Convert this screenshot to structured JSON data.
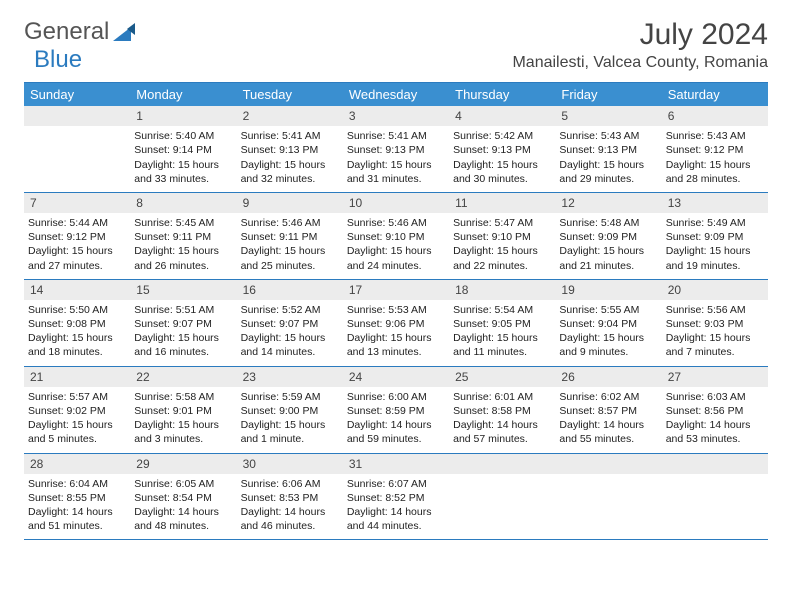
{
  "logo": {
    "part1": "General",
    "part2": "Blue"
  },
  "title": "July 2024",
  "location": "Manailesti, Valcea County, Romania",
  "day_headers": [
    "Sunday",
    "Monday",
    "Tuesday",
    "Wednesday",
    "Thursday",
    "Friday",
    "Saturday"
  ],
  "colors": {
    "header_bg": "#3a8fd0",
    "border": "#2b7bbf",
    "num_bg": "#ececec",
    "text": "#222"
  },
  "weeks": [
    [
      {
        "num": "",
        "sunrise": "",
        "sunset": "",
        "daylight": ""
      },
      {
        "num": "1",
        "sunrise": "Sunrise: 5:40 AM",
        "sunset": "Sunset: 9:14 PM",
        "daylight": "Daylight: 15 hours and 33 minutes."
      },
      {
        "num": "2",
        "sunrise": "Sunrise: 5:41 AM",
        "sunset": "Sunset: 9:13 PM",
        "daylight": "Daylight: 15 hours and 32 minutes."
      },
      {
        "num": "3",
        "sunrise": "Sunrise: 5:41 AM",
        "sunset": "Sunset: 9:13 PM",
        "daylight": "Daylight: 15 hours and 31 minutes."
      },
      {
        "num": "4",
        "sunrise": "Sunrise: 5:42 AM",
        "sunset": "Sunset: 9:13 PM",
        "daylight": "Daylight: 15 hours and 30 minutes."
      },
      {
        "num": "5",
        "sunrise": "Sunrise: 5:43 AM",
        "sunset": "Sunset: 9:13 PM",
        "daylight": "Daylight: 15 hours and 29 minutes."
      },
      {
        "num": "6",
        "sunrise": "Sunrise: 5:43 AM",
        "sunset": "Sunset: 9:12 PM",
        "daylight": "Daylight: 15 hours and 28 minutes."
      }
    ],
    [
      {
        "num": "7",
        "sunrise": "Sunrise: 5:44 AM",
        "sunset": "Sunset: 9:12 PM",
        "daylight": "Daylight: 15 hours and 27 minutes."
      },
      {
        "num": "8",
        "sunrise": "Sunrise: 5:45 AM",
        "sunset": "Sunset: 9:11 PM",
        "daylight": "Daylight: 15 hours and 26 minutes."
      },
      {
        "num": "9",
        "sunrise": "Sunrise: 5:46 AM",
        "sunset": "Sunset: 9:11 PM",
        "daylight": "Daylight: 15 hours and 25 minutes."
      },
      {
        "num": "10",
        "sunrise": "Sunrise: 5:46 AM",
        "sunset": "Sunset: 9:10 PM",
        "daylight": "Daylight: 15 hours and 24 minutes."
      },
      {
        "num": "11",
        "sunrise": "Sunrise: 5:47 AM",
        "sunset": "Sunset: 9:10 PM",
        "daylight": "Daylight: 15 hours and 22 minutes."
      },
      {
        "num": "12",
        "sunrise": "Sunrise: 5:48 AM",
        "sunset": "Sunset: 9:09 PM",
        "daylight": "Daylight: 15 hours and 21 minutes."
      },
      {
        "num": "13",
        "sunrise": "Sunrise: 5:49 AM",
        "sunset": "Sunset: 9:09 PM",
        "daylight": "Daylight: 15 hours and 19 minutes."
      }
    ],
    [
      {
        "num": "14",
        "sunrise": "Sunrise: 5:50 AM",
        "sunset": "Sunset: 9:08 PM",
        "daylight": "Daylight: 15 hours and 18 minutes."
      },
      {
        "num": "15",
        "sunrise": "Sunrise: 5:51 AM",
        "sunset": "Sunset: 9:07 PM",
        "daylight": "Daylight: 15 hours and 16 minutes."
      },
      {
        "num": "16",
        "sunrise": "Sunrise: 5:52 AM",
        "sunset": "Sunset: 9:07 PM",
        "daylight": "Daylight: 15 hours and 14 minutes."
      },
      {
        "num": "17",
        "sunrise": "Sunrise: 5:53 AM",
        "sunset": "Sunset: 9:06 PM",
        "daylight": "Daylight: 15 hours and 13 minutes."
      },
      {
        "num": "18",
        "sunrise": "Sunrise: 5:54 AM",
        "sunset": "Sunset: 9:05 PM",
        "daylight": "Daylight: 15 hours and 11 minutes."
      },
      {
        "num": "19",
        "sunrise": "Sunrise: 5:55 AM",
        "sunset": "Sunset: 9:04 PM",
        "daylight": "Daylight: 15 hours and 9 minutes."
      },
      {
        "num": "20",
        "sunrise": "Sunrise: 5:56 AM",
        "sunset": "Sunset: 9:03 PM",
        "daylight": "Daylight: 15 hours and 7 minutes."
      }
    ],
    [
      {
        "num": "21",
        "sunrise": "Sunrise: 5:57 AM",
        "sunset": "Sunset: 9:02 PM",
        "daylight": "Daylight: 15 hours and 5 minutes."
      },
      {
        "num": "22",
        "sunrise": "Sunrise: 5:58 AM",
        "sunset": "Sunset: 9:01 PM",
        "daylight": "Daylight: 15 hours and 3 minutes."
      },
      {
        "num": "23",
        "sunrise": "Sunrise: 5:59 AM",
        "sunset": "Sunset: 9:00 PM",
        "daylight": "Daylight: 15 hours and 1 minute."
      },
      {
        "num": "24",
        "sunrise": "Sunrise: 6:00 AM",
        "sunset": "Sunset: 8:59 PM",
        "daylight": "Daylight: 14 hours and 59 minutes."
      },
      {
        "num": "25",
        "sunrise": "Sunrise: 6:01 AM",
        "sunset": "Sunset: 8:58 PM",
        "daylight": "Daylight: 14 hours and 57 minutes."
      },
      {
        "num": "26",
        "sunrise": "Sunrise: 6:02 AM",
        "sunset": "Sunset: 8:57 PM",
        "daylight": "Daylight: 14 hours and 55 minutes."
      },
      {
        "num": "27",
        "sunrise": "Sunrise: 6:03 AM",
        "sunset": "Sunset: 8:56 PM",
        "daylight": "Daylight: 14 hours and 53 minutes."
      }
    ],
    [
      {
        "num": "28",
        "sunrise": "Sunrise: 6:04 AM",
        "sunset": "Sunset: 8:55 PM",
        "daylight": "Daylight: 14 hours and 51 minutes."
      },
      {
        "num": "29",
        "sunrise": "Sunrise: 6:05 AM",
        "sunset": "Sunset: 8:54 PM",
        "daylight": "Daylight: 14 hours and 48 minutes."
      },
      {
        "num": "30",
        "sunrise": "Sunrise: 6:06 AM",
        "sunset": "Sunset: 8:53 PM",
        "daylight": "Daylight: 14 hours and 46 minutes."
      },
      {
        "num": "31",
        "sunrise": "Sunrise: 6:07 AM",
        "sunset": "Sunset: 8:52 PM",
        "daylight": "Daylight: 14 hours and 44 minutes."
      },
      {
        "num": "",
        "sunrise": "",
        "sunset": "",
        "daylight": ""
      },
      {
        "num": "",
        "sunrise": "",
        "sunset": "",
        "daylight": ""
      },
      {
        "num": "",
        "sunrise": "",
        "sunset": "",
        "daylight": ""
      }
    ]
  ]
}
